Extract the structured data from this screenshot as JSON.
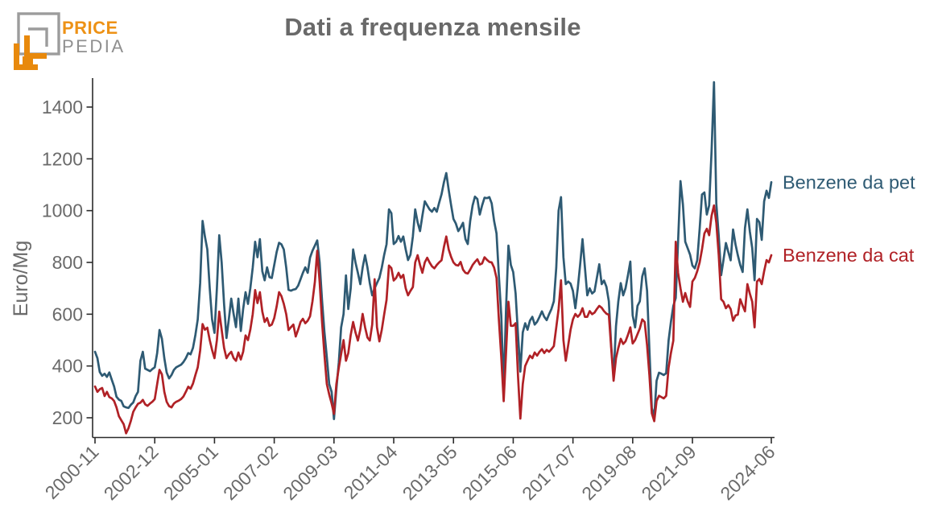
{
  "header": {
    "logo": {
      "line1": "PRICE",
      "line2": "PEDIA"
    },
    "title": "Dati a frequenza mensile"
  },
  "colors": {
    "title_gray": "#696969",
    "tick_gray": "#6a6a6a",
    "axis": "#2b2b2b",
    "logo_orange": "#E8890C",
    "logo_gray": "#9c9c9c",
    "series_pet": "#2e5a73",
    "series_cat": "#b02126"
  },
  "chart_data": {
    "type": "line",
    "title": "Dati a frequenza mensile",
    "xlabel": "",
    "ylabel": "Euro/Mg",
    "grid": false,
    "legend_position": "right-end-of-lines",
    "x_start": "2000-11",
    "x_end": "2024-06",
    "x_frequency": "monthly",
    "x_ticks": [
      "2000-11",
      "2002-12",
      "2005-01",
      "2007-02",
      "2009-03",
      "2011-04",
      "2013-05",
      "2015-06",
      "2017-07",
      "2019-08",
      "2021-09",
      "2024-06"
    ],
    "y_ticks": [
      200,
      400,
      600,
      800,
      1000,
      1200,
      1400
    ],
    "ylim": [
      125,
      1520
    ],
    "series": [
      {
        "name": "Benzene da pet",
        "color": "#2e5a73",
        "start": "2000-11",
        "values": [
          455,
          430,
          377,
          362,
          370,
          358,
          375,
          347,
          321,
          281,
          270,
          265,
          244,
          240,
          238,
          250,
          259,
          284,
          300,
          420,
          455,
          390,
          385,
          380,
          388,
          395,
          450,
          539,
          505,
          430,
          375,
          352,
          365,
          385,
          395,
          400,
          405,
          415,
          430,
          450,
          445,
          470,
          520,
          580,
          720,
          960,
          900,
          850,
          700,
          580,
          528,
          700,
          905,
          800,
          640,
          508,
          580,
          660,
          600,
          550,
          660,
          535,
          620,
          685,
          640,
          700,
          780,
          880,
          820,
          890,
          766,
          731,
          781,
          743,
          740,
          790,
          840,
          876,
          870,
          850,
          780,
          694,
          691,
          695,
          697,
          710,
          735,
          760,
          781,
          760,
          819,
          845,
          865,
          885,
          800,
          653,
          533,
          435,
          330,
          300,
          195,
          311,
          414,
          549,
          600,
          750,
          620,
          700,
          850,
          800,
          760,
          716,
          780,
          828,
          780,
          720,
          673,
          700,
          720,
          740,
          780,
          830,
          870,
          1005,
          990,
          871,
          880,
          902,
          880,
          900,
          850,
          809,
          830,
          900,
          1005,
          955,
          921,
          980,
          1036,
          1020,
          1005,
          996,
          1010,
          996,
          1030,
          1063,
          1110,
          1145,
          1080,
          1021,
          968,
          950,
          921,
          935,
          953,
          890,
          871,
          960,
          1020,
          1054,
          1045,
          985,
          1020,
          1050,
          1048,
          1052,
          1028,
          960,
          912,
          750,
          595,
          306,
          620,
          865,
          790,
          763,
          680,
          520,
          378,
          530,
          565,
          540,
          575,
          590,
          560,
          571,
          590,
          611,
          590,
          577,
          600,
          620,
          650,
          780,
          1000,
          1052,
          820,
          716,
          726,
          718,
          690,
          623,
          700,
          790,
          890,
          780,
          673,
          700,
          680,
          688,
          740,
          793,
          716,
          730,
          706,
          650,
          480,
          358,
          554,
          650,
          720,
          673,
          700,
          750,
          803,
          595,
          549,
          632,
          650,
          746,
          777,
          690,
          461,
          238,
          203,
          343,
          374,
          370,
          365,
          372,
          498,
          570,
          632,
          663,
          880,
          1114,
          1024,
          880,
          855,
          830,
          788,
          777,
          808,
          930,
          1062,
          1070,
          985,
          1020,
          1230,
          1496,
          1027,
          902,
          751,
          810,
          875,
          840,
          808,
          927,
          870,
          828,
          790,
          763,
          933,
          1005,
          920,
          855,
          731,
          968,
          955,
          887,
          1036,
          1077,
          1049,
          1110
        ]
      },
      {
        "name": "Benzene da cat",
        "color": "#b02126",
        "start": "2000-11",
        "values": [
          321,
          300,
          310,
          315,
          284,
          300,
          280,
          275,
          265,
          240,
          206,
          190,
          175,
          140,
          160,
          188,
          223,
          240,
          254,
          258,
          269,
          252,
          246,
          255,
          262,
          272,
          330,
          385,
          368,
          300,
          262,
          245,
          240,
          255,
          262,
          266,
          272,
          282,
          300,
          320,
          312,
          332,
          365,
          395,
          460,
          562,
          540,
          548,
          500,
          462,
          430,
          500,
          610,
          540,
          470,
          430,
          445,
          455,
          430,
          420,
          452,
          425,
          455,
          518,
          500,
          540,
          600,
          693,
          643,
          685,
          610,
          570,
          585,
          555,
          560,
          585,
          630,
          685,
          670,
          640,
          600,
          539,
          550,
          560,
          514,
          540,
          570,
          582,
          565,
          575,
          592,
          650,
          725,
          845,
          725,
          570,
          446,
          331,
          290,
          255,
          215,
          331,
          393,
          446,
          500,
          420,
          450,
          520,
          570,
          530,
          498,
          540,
          601,
          550,
          510,
          498,
          560,
          735,
          550,
          495,
          540,
          600,
          655,
          788,
          778,
          730,
          740,
          760,
          740,
          752,
          700,
          673,
          690,
          705,
          800,
          828,
          790,
          760,
          800,
          818,
          800,
          785,
          777,
          790,
          800,
          808,
          860,
          900,
          850,
          821,
          800,
          790,
          788,
          802,
          772,
          760,
          757,
          772,
          790,
          802,
          812,
          792,
          796,
          820,
          810,
          802,
          800,
          780,
          740,
          580,
          435,
          264,
          450,
          648,
          555,
          555,
          565,
          360,
          197,
          330,
          400,
          420,
          440,
          430,
          452,
          440,
          455,
          465,
          450,
          462,
          455,
          465,
          477,
          549,
          620,
          731,
          500,
          420,
          480,
          540,
          580,
          601,
          590,
          600,
          623,
          590,
          590,
          612,
          600,
          606,
          620,
          632,
          625,
          612,
          602,
          598,
          470,
          343,
          430,
          470,
          505,
          485,
          495,
          520,
          549,
          487,
          500,
          523,
          545,
          580,
          570,
          480,
          364,
          217,
          187,
          265,
          285,
          280,
          275,
          285,
          393,
          450,
          498,
          880,
          760,
          700,
          648,
          682,
          650,
          628,
          726,
          740,
          766,
          800,
          850,
          912,
          930,
          905,
          980,
          1020,
          953,
          828,
          658,
          648,
          623,
          635,
          620,
          575,
          595,
          598,
          658,
          633,
          611,
          716,
          680,
          648,
          549,
          726,
          736,
          716,
          766,
          809,
          800,
          828
        ]
      }
    ]
  }
}
